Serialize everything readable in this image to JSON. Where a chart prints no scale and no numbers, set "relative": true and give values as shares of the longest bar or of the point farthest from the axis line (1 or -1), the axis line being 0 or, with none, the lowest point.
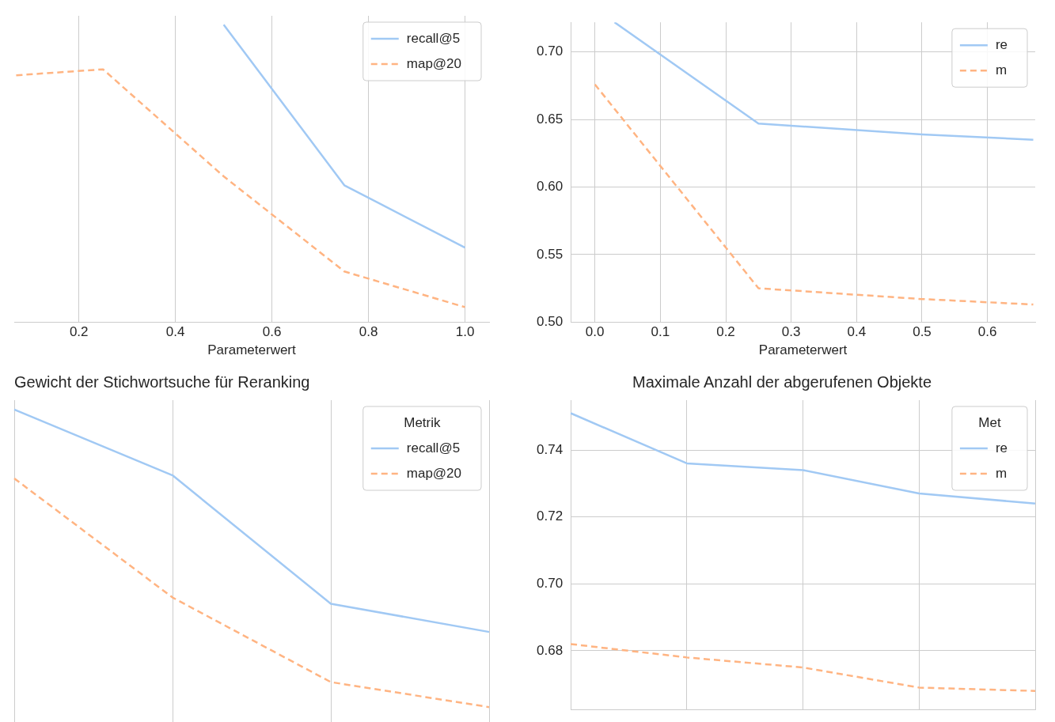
{
  "chart_data": [
    {
      "type": "line",
      "xlabel": "Parameterwert",
      "x": [
        0.07,
        0.25,
        0.5,
        0.75,
        1.0
      ],
      "relative": true,
      "xlim": [
        0.066,
        1.05
      ],
      "xticks": [
        0.2,
        0.4,
        0.6,
        0.8,
        {
          "value": 1,
          "label": "1.0"
        }
      ],
      "grid": true,
      "legend": "top right",
      "series": [
        {
          "name": "recall@5",
          "color": "#a1c9f4",
          "line_style": "solid",
          "values": [
            null,
            null,
            1,
            0.46,
            0.25
          ]
        },
        {
          "name": "map@20",
          "color": "#ffb482",
          "line_style": "dashed",
          "values": [
            0.83,
            0.85,
            0.49,
            0.17,
            0.05
          ]
        }
      ]
    },
    {
      "type": "line",
      "xlabel": "Parameterwert",
      "x": [
        0,
        0.03,
        0.25,
        0.5,
        0.67
      ],
      "xlim": [
        -0.037,
        0.673
      ],
      "xticks": [
        {
          "value": 0,
          "label": "0.0"
        },
        0.1,
        0.2,
        0.3,
        0.4,
        0.5,
        0.6
      ],
      "ylim": [
        0.5,
        0.722
      ],
      "yticks": [
        {
          "value": 0.5,
          "label": "0.50"
        },
        0.55,
        {
          "value": 0.6,
          "label": "0.60"
        },
        0.65,
        {
          "value": 0.7,
          "label": "0.70"
        }
      ],
      "grid": true,
      "legend": "top right",
      "series": [
        {
          "name": "re",
          "color": "#a1c9f4",
          "line_style": "solid",
          "values": [
            null,
            0.722,
            0.647,
            0.639,
            0.635
          ]
        },
        {
          "name": "m",
          "color": "#ffb482",
          "line_style": "dashed",
          "values": [
            0.676,
            null,
            0.525,
            0.517,
            0.513
          ]
        }
      ]
    },
    {
      "type": "line",
      "title": "Gewicht der Stichwortsuche für Reranking",
      "legend_title": "Metrik",
      "categories": [
        null,
        null,
        null,
        null
      ],
      "relative": true,
      "grid": true,
      "legend": "top right",
      "series": [
        {
          "name": "recall@5",
          "color": "#a1c9f4",
          "line_style": "solid",
          "values": [
            1,
            0.79,
            0.38,
            0.29
          ]
        },
        {
          "name": "map@20",
          "color": "#ffb482",
          "line_style": "dashed",
          "values": [
            0.78,
            0.4,
            0.13,
            0.05
          ]
        }
      ]
    },
    {
      "type": "line",
      "title": "Maximale Anzahl der abgerufenen Objekte",
      "legend_title": "Met",
      "categories": [
        null,
        null,
        null,
        null,
        null
      ],
      "ylim": [
        0.6623,
        0.7549
      ],
      "yticks": [
        0.68,
        {
          "value": 0.7,
          "label": "0.70"
        },
        0.72,
        0.74
      ],
      "grid": true,
      "legend": "top right",
      "series": [
        {
          "name": "re",
          "color": "#a1c9f4",
          "line_style": "solid",
          "values": [
            0.751,
            0.736,
            0.734,
            0.727,
            0.724
          ]
        },
        {
          "name": "m",
          "color": "#ffb482",
          "line_style": "dashed",
          "values": [
            0.682,
            0.678,
            0.675,
            0.669,
            0.668
          ]
        }
      ]
    }
  ]
}
